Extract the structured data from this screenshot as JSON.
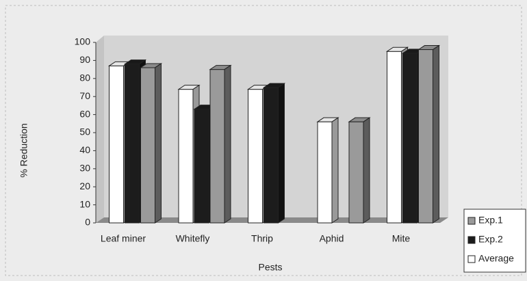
{
  "chart_data": {
    "type": "bar3d",
    "categories": [
      "Leaf miner",
      "Whitefly",
      "Thrip",
      "Aphid",
      "Mite"
    ],
    "series": [
      {
        "name": "Exp.1",
        "color": "#9a9a9a",
        "values": [
          86,
          85,
          null,
          56,
          96
        ]
      },
      {
        "name": "Exp.2",
        "color": "#1c1c1c",
        "values": [
          88,
          63,
          75,
          null,
          94
        ]
      },
      {
        "name": "Average",
        "color": "#ffffff",
        "values": [
          87,
          74,
          74,
          56,
          95
        ]
      }
    ],
    "ylabel": "% Reduction",
    "xlabel": "Pests",
    "ylim": [
      0,
      100
    ],
    "yticks": [
      0,
      10,
      20,
      30,
      40,
      50,
      60,
      70,
      80,
      90,
      100
    ],
    "legend": "lower right"
  }
}
